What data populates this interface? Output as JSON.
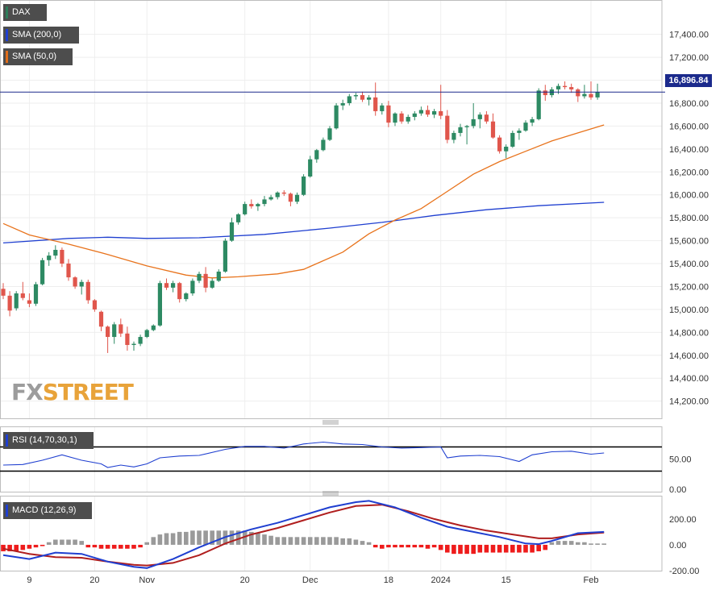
{
  "legend": {
    "dax": {
      "label": "DAX",
      "color": "#2d7d5a"
    },
    "sma200": {
      "label": "SMA (200,0)",
      "color": "#1f3fd0"
    },
    "sma50": {
      "label": "SMA (50,0)",
      "color": "#e06d1a"
    },
    "rsi": {
      "label": "RSI (14,70,30,1)",
      "color": "#1f3fd0"
    },
    "macd": {
      "label": "MACD (12,26,9)",
      "color": "#1f3fd0"
    }
  },
  "current_price": "16,896.84",
  "watermark": {
    "fx": "FX",
    "street": "STREET"
  },
  "colors": {
    "up": "#2d8a63",
    "down": "#e0564c",
    "sma200": "#1f3fd0",
    "sma50": "#e8731c",
    "macd_line": "#1f3fd0",
    "signal_line": "#b01e1e",
    "hist_pos": "#9a9a9a",
    "hist_neg": "#ee1c1c",
    "rsi_line": "#1f3fd0",
    "price_line": "#1b2a8c"
  },
  "chart_data": {
    "type": "candlestick",
    "x_labels": [
      {
        "i": 4,
        "label": "9"
      },
      {
        "i": 14,
        "label": "20"
      },
      {
        "i": 22,
        "label": "Nov"
      },
      {
        "i": 37,
        "label": "20"
      },
      {
        "i": 47,
        "label": "Dec"
      },
      {
        "i": 59,
        "label": "18"
      },
      {
        "i": 67,
        "label": "2024"
      },
      {
        "i": 77,
        "label": "15"
      },
      {
        "i": 90,
        "label": "Feb"
      }
    ],
    "price_axis": {
      "ylim": [
        14050,
        17700
      ],
      "ticks": [
        14200,
        14400,
        14600,
        14800,
        15000,
        15200,
        15400,
        15600,
        15800,
        16000,
        16200,
        16400,
        16600,
        16800,
        17000,
        17200,
        17400
      ],
      "tick_labels": [
        "14,200.00",
        "14,400.00",
        "14,600.00",
        "14,800.00",
        "15,000.00",
        "15,200.00",
        "15,400.00",
        "15,600.00",
        "15,800.00",
        "16,000.00",
        "16,200.00",
        "16,400.00",
        "16,600.00",
        "16,800.00",
        "17,000.00",
        "17,200.00",
        "17,400.00"
      ]
    },
    "last_close": 16896.84,
    "candles": [
      [
        15180,
        15230,
        15090,
        15120
      ],
      [
        15120,
        15160,
        14940,
        14990
      ],
      [
        15010,
        15160,
        14990,
        15140
      ],
      [
        15140,
        15240,
        15080,
        15100
      ],
      [
        15080,
        15140,
        15020,
        15050
      ],
      [
        15050,
        15240,
        15030,
        15220
      ],
      [
        15220,
        15450,
        15210,
        15430
      ],
      [
        15430,
        15500,
        15380,
        15470
      ],
      [
        15470,
        15560,
        15440,
        15520
      ],
      [
        15520,
        15540,
        15370,
        15400
      ],
      [
        15400,
        15440,
        15250,
        15280
      ],
      [
        15280,
        15290,
        15180,
        15200
      ],
      [
        15200,
        15260,
        15130,
        15240
      ],
      [
        15240,
        15260,
        15050,
        15080
      ],
      [
        15080,
        15090,
        14980,
        15000
      ],
      [
        14980,
        14990,
        14810,
        14850
      ],
      [
        14850,
        14860,
        14620,
        14760
      ],
      [
        14760,
        14890,
        14700,
        14870
      ],
      [
        14870,
        14920,
        14760,
        14790
      ],
      [
        14790,
        14850,
        14640,
        14690
      ],
      [
        14690,
        14720,
        14640,
        14700
      ],
      [
        14700,
        14780,
        14680,
        14760
      ],
      [
        14760,
        14830,
        14750,
        14820
      ],
      [
        14820,
        14870,
        14810,
        14860
      ],
      [
        14860,
        15250,
        14850,
        15230
      ],
      [
        15230,
        15270,
        15170,
        15190
      ],
      [
        15190,
        15250,
        15150,
        15230
      ],
      [
        15230,
        15240,
        15060,
        15090
      ],
      [
        15090,
        15150,
        15070,
        15140
      ],
      [
        15140,
        15270,
        15120,
        15250
      ],
      [
        15250,
        15330,
        15230,
        15310
      ],
      [
        15310,
        15370,
        15150,
        15190
      ],
      [
        15190,
        15270,
        15180,
        15250
      ],
      [
        15250,
        15350,
        15240,
        15330
      ],
      [
        15330,
        15620,
        15320,
        15600
      ],
      [
        15600,
        15800,
        15590,
        15760
      ],
      [
        15760,
        15840,
        15740,
        15830
      ],
      [
        15830,
        15940,
        15820,
        15920
      ],
      [
        15920,
        15960,
        15880,
        15900
      ],
      [
        15900,
        15930,
        15860,
        15920
      ],
      [
        15920,
        15990,
        15900,
        15960
      ],
      [
        15960,
        16000,
        15950,
        15980
      ],
      [
        15980,
        16030,
        15960,
        16020
      ],
      [
        16020,
        16040,
        15990,
        16010
      ],
      [
        16010,
        16020,
        15900,
        15940
      ],
      [
        15940,
        16020,
        15920,
        16000
      ],
      [
        16000,
        16180,
        15990,
        16160
      ],
      [
        16160,
        16340,
        16150,
        16310
      ],
      [
        16310,
        16400,
        16280,
        16390
      ],
      [
        16390,
        16500,
        16380,
        16480
      ],
      [
        16480,
        16600,
        16470,
        16580
      ],
      [
        16580,
        16800,
        16570,
        16780
      ],
      [
        16780,
        16830,
        16740,
        16800
      ],
      [
        16800,
        16880,
        16780,
        16860
      ],
      [
        16860,
        16890,
        16830,
        16870
      ],
      [
        16870,
        16900,
        16810,
        16830
      ],
      [
        16830,
        16870,
        16780,
        16850
      ],
      [
        16850,
        16980,
        16690,
        16730
      ],
      [
        16730,
        16800,
        16700,
        16780
      ],
      [
        16780,
        16820,
        16590,
        16630
      ],
      [
        16630,
        16720,
        16600,
        16710
      ],
      [
        16710,
        16730,
        16620,
        16640
      ],
      [
        16640,
        16700,
        16620,
        16680
      ],
      [
        16680,
        16730,
        16650,
        16710
      ],
      [
        16710,
        16770,
        16690,
        16740
      ],
      [
        16740,
        16780,
        16680,
        16700
      ],
      [
        16700,
        16750,
        16670,
        16730
      ],
      [
        16730,
        16960,
        16660,
        16690
      ],
      [
        16690,
        16740,
        16450,
        16480
      ],
      [
        16480,
        16560,
        16450,
        16540
      ],
      [
        16540,
        16620,
        16510,
        16590
      ],
      [
        16590,
        16610,
        16440,
        16600
      ],
      [
        16600,
        16800,
        16580,
        16660
      ],
      [
        16660,
        16720,
        16580,
        16700
      ],
      [
        16700,
        16730,
        16620,
        16640
      ],
      [
        16640,
        16710,
        16490,
        16500
      ],
      [
        16500,
        16520,
        16360,
        16380
      ],
      [
        16380,
        16440,
        16320,
        16420
      ],
      [
        16420,
        16560,
        16410,
        16540
      ],
      [
        16540,
        16580,
        16480,
        16560
      ],
      [
        16560,
        16650,
        16550,
        16630
      ],
      [
        16630,
        16680,
        16600,
        16660
      ],
      [
        16660,
        16930,
        16650,
        16910
      ],
      [
        16910,
        16960,
        16820,
        16870
      ],
      [
        16870,
        16940,
        16850,
        16920
      ],
      [
        16920,
        16970,
        16880,
        16950
      ],
      [
        16950,
        16990,
        16920,
        16940
      ],
      [
        16940,
        16970,
        16890,
        16920
      ],
      [
        16920,
        16930,
        16810,
        16860
      ],
      [
        16860,
        16960,
        16840,
        16880
      ],
      [
        16880,
        16990,
        16830,
        16850
      ],
      [
        16850,
        16970,
        16830,
        16897
      ]
    ],
    "sma200": [
      [
        0,
        15580
      ],
      [
        10,
        15620
      ],
      [
        16,
        15630
      ],
      [
        22,
        15620
      ],
      [
        30,
        15625
      ],
      [
        40,
        15655
      ],
      [
        50,
        15710
      ],
      [
        58,
        15760
      ],
      [
        66,
        15820
      ],
      [
        74,
        15870
      ],
      [
        82,
        15905
      ],
      [
        92,
        15935
      ]
    ],
    "sma50": [
      [
        0,
        15750
      ],
      [
        4,
        15650
      ],
      [
        10,
        15570
      ],
      [
        16,
        15480
      ],
      [
        22,
        15380
      ],
      [
        28,
        15300
      ],
      [
        32,
        15275
      ],
      [
        36,
        15285
      ],
      [
        42,
        15310
      ],
      [
        46,
        15350
      ],
      [
        52,
        15500
      ],
      [
        56,
        15660
      ],
      [
        60,
        15780
      ],
      [
        64,
        15880
      ],
      [
        68,
        16030
      ],
      [
        72,
        16180
      ],
      [
        76,
        16290
      ],
      [
        80,
        16380
      ],
      [
        84,
        16470
      ],
      [
        88,
        16540
      ],
      [
        92,
        16610
      ]
    ],
    "rsi": {
      "label": "RSI (14,70,30,1)",
      "ylim": [
        0,
        100
      ],
      "levels": [
        70,
        30
      ],
      "tick_labels": [
        {
          "v": 50,
          "label": "50.00"
        },
        {
          "v": 0,
          "label": "0.00"
        }
      ],
      "points": [
        [
          0,
          40
        ],
        [
          3,
          41
        ],
        [
          6,
          48
        ],
        [
          9,
          57
        ],
        [
          12,
          48
        ],
        [
          15,
          42
        ],
        [
          16,
          36
        ],
        [
          18,
          40
        ],
        [
          20,
          37
        ],
        [
          22,
          42
        ],
        [
          24,
          52
        ],
        [
          27,
          55
        ],
        [
          30,
          56
        ],
        [
          34,
          66
        ],
        [
          37,
          71
        ],
        [
          40,
          71
        ],
        [
          43,
          68
        ],
        [
          46,
          75
        ],
        [
          49,
          78
        ],
        [
          52,
          75
        ],
        [
          55,
          74
        ],
        [
          58,
          70
        ],
        [
          61,
          68
        ],
        [
          64,
          69
        ],
        [
          67,
          70
        ],
        [
          68,
          52
        ],
        [
          70,
          55
        ],
        [
          73,
          56
        ],
        [
          76,
          54
        ],
        [
          79,
          46
        ],
        [
          81,
          57
        ],
        [
          84,
          62
        ],
        [
          87,
          63
        ],
        [
          90,
          58
        ],
        [
          92,
          60
        ]
      ]
    },
    "macd": {
      "label": "MACD (12,26,9)",
      "ylim": [
        -200,
        380
      ],
      "ticks": [
        200,
        0,
        -200
      ],
      "tick_labels": [
        "200.00",
        "0.00",
        "-200.00"
      ],
      "macd": [
        [
          0,
          -80
        ],
        [
          4,
          -110
        ],
        [
          8,
          -60
        ],
        [
          12,
          -70
        ],
        [
          16,
          -130
        ],
        [
          20,
          -170
        ],
        [
          22,
          -180
        ],
        [
          26,
          -110
        ],
        [
          30,
          -20
        ],
        [
          34,
          60
        ],
        [
          38,
          120
        ],
        [
          42,
          170
        ],
        [
          46,
          230
        ],
        [
          50,
          290
        ],
        [
          54,
          330
        ],
        [
          56,
          340
        ],
        [
          60,
          290
        ],
        [
          64,
          210
        ],
        [
          68,
          140
        ],
        [
          72,
          100
        ],
        [
          76,
          60
        ],
        [
          80,
          10
        ],
        [
          82,
          5
        ],
        [
          84,
          30
        ],
        [
          88,
          90
        ],
        [
          92,
          100
        ]
      ],
      "signal": [
        [
          0,
          -30
        ],
        [
          4,
          -70
        ],
        [
          8,
          -95
        ],
        [
          12,
          -100
        ],
        [
          16,
          -130
        ],
        [
          20,
          -155
        ],
        [
          22,
          -160
        ],
        [
          26,
          -140
        ],
        [
          30,
          -80
        ],
        [
          34,
          10
        ],
        [
          38,
          80
        ],
        [
          42,
          130
        ],
        [
          46,
          190
        ],
        [
          50,
          250
        ],
        [
          54,
          300
        ],
        [
          58,
          310
        ],
        [
          62,
          260
        ],
        [
          66,
          200
        ],
        [
          70,
          150
        ],
        [
          74,
          110
        ],
        [
          78,
          80
        ],
        [
          82,
          50
        ],
        [
          84,
          50
        ],
        [
          88,
          80
        ],
        [
          92,
          95
        ]
      ],
      "histogram": [
        -50,
        -50,
        -50,
        -40,
        -30,
        -20,
        -10,
        20,
        40,
        40,
        40,
        40,
        30,
        -20,
        -20,
        -30,
        -30,
        -30,
        -30,
        -30,
        -30,
        -20,
        20,
        60,
        80,
        90,
        90,
        100,
        100,
        110,
        110,
        110,
        110,
        110,
        110,
        110,
        110,
        110,
        100,
        90,
        80,
        70,
        60,
        60,
        60,
        60,
        60,
        60,
        60,
        60,
        60,
        60,
        50,
        50,
        40,
        30,
        20,
        -20,
        -30,
        -20,
        -20,
        -20,
        -20,
        -20,
        -20,
        -30,
        -20,
        -40,
        -60,
        -70,
        -70,
        -70,
        -70,
        -60,
        -60,
        -60,
        -60,
        -60,
        -60,
        -60,
        -60,
        -60,
        -50,
        -40,
        20,
        30,
        30,
        30,
        20,
        20,
        10,
        10,
        10
      ]
    }
  }
}
